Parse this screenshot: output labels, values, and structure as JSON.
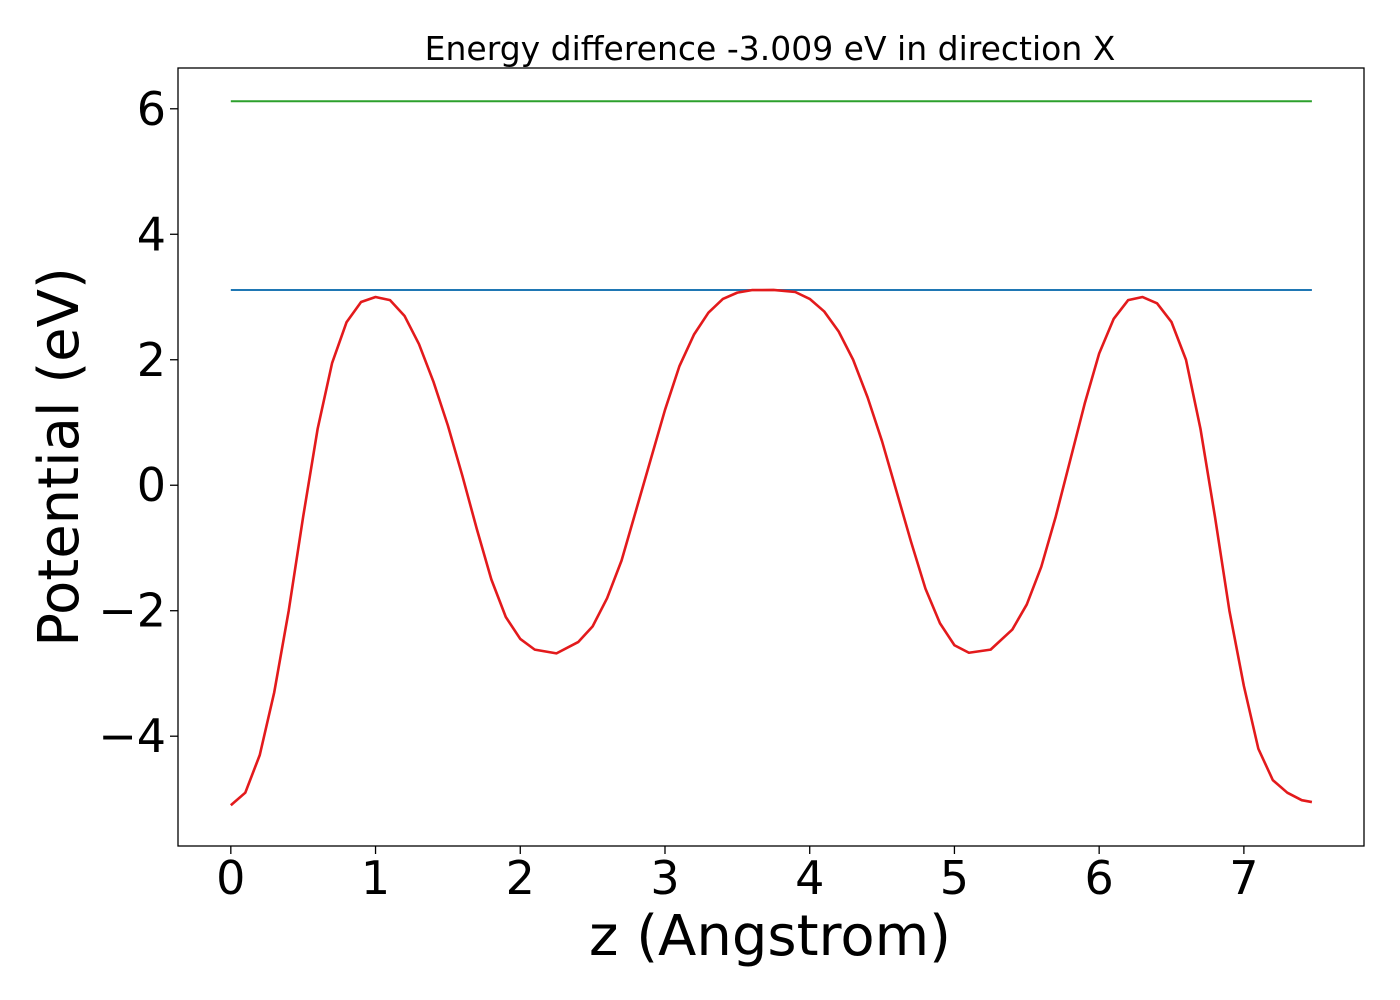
{
  "chart_data": {
    "type": "line",
    "title": "Energy difference -3.009 eV in direction X",
    "xlabel": "z (Angstrom)",
    "ylabel": "Potential (eV)",
    "xlim": [
      -0.365,
      7.83
    ],
    "ylim": [
      -5.75,
      6.65
    ],
    "x_ticks": [
      0,
      1,
      2,
      3,
      4,
      5,
      6,
      7
    ],
    "x_tick_labels": [
      "0",
      "1",
      "2",
      "3",
      "4",
      "5",
      "6",
      "7"
    ],
    "y_ticks": [
      -4,
      -2,
      0,
      2,
      4,
      6
    ],
    "y_tick_labels": [
      "−4",
      "−2",
      "0",
      "2",
      "4",
      "6"
    ],
    "grid": false,
    "series": [
      {
        "color": "#2ca02c",
        "style": "horizontal",
        "x": [
          0.0,
          7.47
        ],
        "y": [
          6.121,
          6.121
        ]
      },
      {
        "color": "#1f77b4",
        "style": "horizontal",
        "x": [
          0.0,
          7.47
        ],
        "y": [
          3.112,
          3.112
        ]
      },
      {
        "color": "#e31a1c",
        "style": "curve",
        "x": [
          0.0,
          0.1,
          0.2,
          0.3,
          0.4,
          0.5,
          0.6,
          0.7,
          0.8,
          0.9,
          1.0,
          1.1,
          1.2,
          1.3,
          1.4,
          1.5,
          1.6,
          1.7,
          1.8,
          1.9,
          2.0,
          2.1,
          2.25,
          2.4,
          2.5,
          2.6,
          2.7,
          2.8,
          2.9,
          3.0,
          3.1,
          3.2,
          3.3,
          3.4,
          3.5,
          3.6,
          3.75,
          3.9,
          4.0,
          4.1,
          4.2,
          4.3,
          4.4,
          4.5,
          4.6,
          4.7,
          4.8,
          4.9,
          5.0,
          5.1,
          5.25,
          5.4,
          5.5,
          5.6,
          5.7,
          5.8,
          5.9,
          6.0,
          6.1,
          6.2,
          6.3,
          6.4,
          6.5,
          6.6,
          6.7,
          6.8,
          6.9,
          7.0,
          7.1,
          7.2,
          7.3,
          7.4,
          7.47
        ],
        "y": [
          -5.1,
          -4.9,
          -4.3,
          -3.3,
          -2.0,
          -0.5,
          0.9,
          1.95,
          2.6,
          2.92,
          3.0,
          2.95,
          2.7,
          2.25,
          1.65,
          0.95,
          0.15,
          -0.7,
          -1.5,
          -2.1,
          -2.45,
          -2.62,
          -2.68,
          -2.5,
          -2.25,
          -1.8,
          -1.2,
          -0.4,
          0.4,
          1.2,
          1.9,
          2.4,
          2.75,
          2.97,
          3.07,
          3.11,
          3.112,
          3.08,
          2.97,
          2.77,
          2.45,
          2.0,
          1.4,
          0.7,
          -0.1,
          -0.9,
          -1.65,
          -2.2,
          -2.55,
          -2.67,
          -2.62,
          -2.3,
          -1.9,
          -1.3,
          -0.5,
          0.4,
          1.3,
          2.1,
          2.65,
          2.95,
          3.0,
          2.9,
          2.6,
          2.0,
          0.9,
          -0.5,
          -2.0,
          -3.2,
          -4.2,
          -4.7,
          -4.9,
          -5.02,
          -5.05
        ]
      }
    ]
  }
}
